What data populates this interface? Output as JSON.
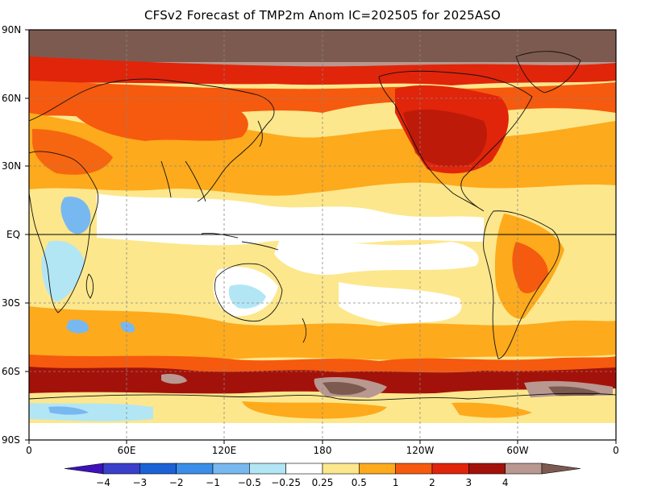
{
  "title": "CFSv2 Forecast of TMP2m Anom IC=202505 for 2025ASO",
  "map": {
    "variable": "TMP2m Anom",
    "projection": "cylindrical-equidistant",
    "lat_labels": [
      "90N",
      "60N",
      "30N",
      "EQ",
      "30S",
      "60S",
      "90S"
    ],
    "lon_labels": [
      "0",
      "60E",
      "120E",
      "180",
      "120W",
      "60W",
      "0"
    ],
    "colors": {
      "frame": "#000000",
      "grid": "#888888",
      "coast": "#111111"
    }
  },
  "colorbar": {
    "labels": [
      "-4",
      "-3",
      "-2",
      "-1",
      "-0.5",
      "-0.25",
      "0.25",
      "0.5",
      "1",
      "2",
      "3",
      "4"
    ],
    "colors": [
      "#3d12b8",
      "#3a40c9",
      "#1a62d6",
      "#3a8ee8",
      "#78b8f0",
      "#b2e6f5",
      "#ffffff",
      "#fde78c",
      "#fdaa1c",
      "#f55a0e",
      "#e0250a",
      "#a3120a",
      "#b89890",
      "#7d5a4f"
    ]
  }
}
